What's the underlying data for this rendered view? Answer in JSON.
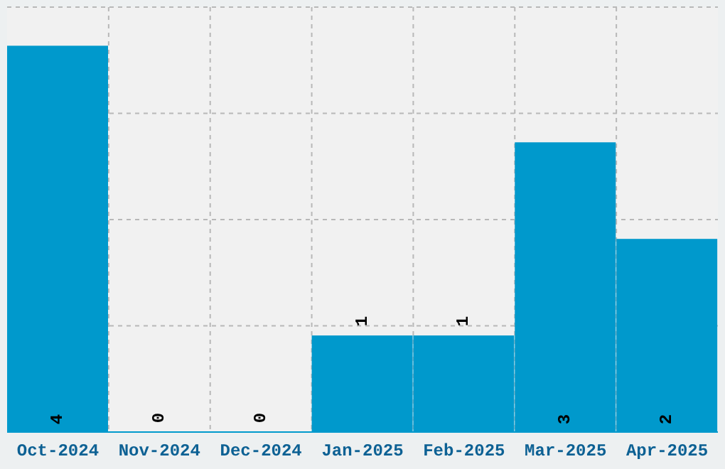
{
  "chart_data": {
    "type": "bar",
    "categories": [
      "Oct-2024",
      "Nov-2024",
      "Dec-2024",
      "Jan-2025",
      "Feb-2025",
      "Mar-2025",
      "Apr-2025"
    ],
    "values": [
      4,
      0,
      0,
      1,
      1,
      3,
      2
    ],
    "color": "#0099cc",
    "data_labels": true,
    "ylim": [
      0,
      4.4
    ],
    "yticks": [
      {
        "value": 0,
        "label": null
      },
      {
        "value": 1.1,
        "label": null
      },
      {
        "value": 2.2,
        "label": null
      },
      {
        "value": 3.3,
        "label": null
      },
      {
        "value": 4.4,
        "label": null
      }
    ],
    "grid": true,
    "tick_labels": "x"
  }
}
